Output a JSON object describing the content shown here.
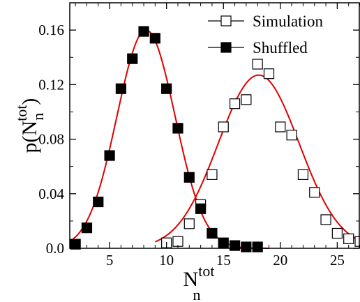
{
  "chart_data": {
    "type": "scatter",
    "xlabel": "N",
    "xlabel_sub": "n",
    "xlabel_sup": "tot",
    "ylabel": "p(N",
    "ylabel_sub": "n",
    "ylabel_sup": "tot",
    "ylabel_close": ")",
    "xlim": [
      1.5,
      27
    ],
    "ylim": [
      0,
      0.18
    ],
    "xticks": [
      5,
      10,
      15,
      20,
      25
    ],
    "yticks": [
      0.0,
      0.04,
      0.08,
      0.12,
      0.16
    ],
    "xtick_labels": [
      "5",
      "10",
      "15",
      "20",
      "25"
    ],
    "ytick_labels": [
      "0.0",
      "0.04",
      "0.08",
      "0.12",
      "0.16"
    ],
    "legend_position": "top-right",
    "fit_color": "#e00000",
    "series": [
      {
        "name": "Simulation",
        "marker": "open-square",
        "x": [
          10,
          11,
          12,
          13,
          14,
          15,
          16,
          17,
          18,
          19,
          20,
          21,
          22,
          23,
          24,
          25,
          26,
          27
        ],
        "y": [
          0.004,
          0.005,
          0.018,
          0.032,
          0.054,
          0.089,
          0.106,
          0.109,
          0.135,
          0.128,
          0.089,
          0.083,
          0.054,
          0.041,
          0.021,
          0.011,
          0.007,
          0.005
        ]
      },
      {
        "name": "Shuffled",
        "marker": "filled-square",
        "x": [
          2,
          3,
          4,
          5,
          6,
          7,
          8,
          9,
          10,
          11,
          12,
          13,
          14,
          15,
          16,
          17,
          18
        ],
        "y": [
          0.003,
          0.015,
          0.034,
          0.068,
          0.117,
          0.139,
          0.159,
          0.154,
          0.117,
          0.088,
          0.052,
          0.029,
          0.011,
          0.004,
          0.002,
          0.001,
          0.001
        ]
      }
    ],
    "fits": [
      {
        "for": "Simulation",
        "type": "gaussian",
        "amplitude": 0.127,
        "mean": 18.1,
        "sigma": 3.55,
        "x_range": [
          9.0,
          27.0
        ]
      },
      {
        "for": "Shuffled",
        "type": "gaussian",
        "amplitude": 0.16,
        "mean": 8.2,
        "sigma": 2.55,
        "x_range": [
          1.5,
          19.0
        ]
      }
    ]
  }
}
